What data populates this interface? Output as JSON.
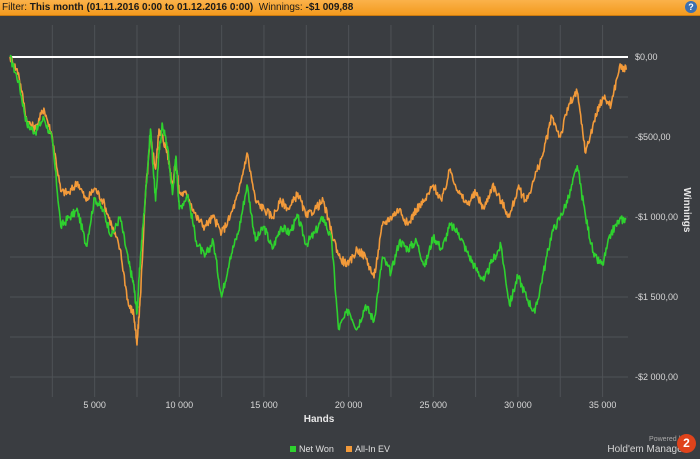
{
  "filter_bar": {
    "prefix": "Filter: ",
    "range": "This month (01.11.2016 0:00 to 01.12.2016 0:00)",
    "winnings_label": "Winnings:",
    "winnings_value": "-$1 009,88",
    "help_icon": "?"
  },
  "branding": {
    "powered_by": "Powered by",
    "product": "Hold'em Manager",
    "badge": "2"
  },
  "colors": {
    "net_won": "#2ed12e",
    "all_in_ev": "#f29a3a",
    "zero_line": "#ffffff",
    "grid": "#4e5256"
  },
  "chart_data": {
    "type": "line",
    "xlabel": "Hands",
    "ylabel": "Winnings",
    "xlim": [
      0,
      36500
    ],
    "ylim": [
      -2000,
      0
    ],
    "xticks": [
      5000,
      10000,
      15000,
      20000,
      25000,
      30000,
      35000
    ],
    "xtick_labels": [
      "5 000",
      "10 000",
      "15 000",
      "20 000",
      "25 000",
      "30 000",
      "35 000"
    ],
    "yticks": [
      0,
      -500,
      -1000,
      -1500,
      -2000
    ],
    "ytick_labels": [
      "$0,00",
      "-$500,00",
      "-$1 000,00",
      "-$1 500,00",
      "-$2 000,00"
    ],
    "legend": [
      "Net Won",
      "All-In EV"
    ],
    "legend_position": "bottom-center",
    "grid": true,
    "series": [
      {
        "name": "Net Won",
        "points": [
          [
            0,
            0
          ],
          [
            500,
            -150
          ],
          [
            1000,
            -420
          ],
          [
            1500,
            -470
          ],
          [
            2000,
            -380
          ],
          [
            2500,
            -520
          ],
          [
            3000,
            -1060
          ],
          [
            3500,
            -1000
          ],
          [
            4000,
            -960
          ],
          [
            4500,
            -1180
          ],
          [
            5000,
            -880
          ],
          [
            5500,
            -960
          ],
          [
            6000,
            -1120
          ],
          [
            6500,
            -1000
          ],
          [
            7000,
            -1280
          ],
          [
            7300,
            -1420
          ],
          [
            7500,
            -1600
          ],
          [
            7700,
            -1260
          ],
          [
            8000,
            -860
          ],
          [
            8300,
            -450
          ],
          [
            8600,
            -900
          ],
          [
            8800,
            -600
          ],
          [
            9000,
            -420
          ],
          [
            9300,
            -560
          ],
          [
            9600,
            -860
          ],
          [
            9800,
            -620
          ],
          [
            10000,
            -950
          ],
          [
            10500,
            -860
          ],
          [
            11000,
            -1150
          ],
          [
            11500,
            -1250
          ],
          [
            12000,
            -1150
          ],
          [
            12500,
            -1500
          ],
          [
            13000,
            -1250
          ],
          [
            13500,
            -1090
          ],
          [
            14000,
            -800
          ],
          [
            14500,
            -1150
          ],
          [
            15000,
            -1060
          ],
          [
            15500,
            -1200
          ],
          [
            16000,
            -1060
          ],
          [
            16500,
            -1100
          ],
          [
            17000,
            -1000
          ],
          [
            17500,
            -1170
          ],
          [
            18000,
            -1100
          ],
          [
            18500,
            -1000
          ],
          [
            19000,
            -1150
          ],
          [
            19400,
            -1700
          ],
          [
            20000,
            -1580
          ],
          [
            20500,
            -1700
          ],
          [
            21000,
            -1550
          ],
          [
            21500,
            -1650
          ],
          [
            22000,
            -1250
          ],
          [
            22500,
            -1350
          ],
          [
            23000,
            -1150
          ],
          [
            23500,
            -1200
          ],
          [
            24000,
            -1150
          ],
          [
            24500,
            -1310
          ],
          [
            25000,
            -1120
          ],
          [
            25500,
            -1200
          ],
          [
            26000,
            -1050
          ],
          [
            26500,
            -1100
          ],
          [
            27000,
            -1220
          ],
          [
            27500,
            -1320
          ],
          [
            28000,
            -1400
          ],
          [
            28500,
            -1270
          ],
          [
            29000,
            -1180
          ],
          [
            29500,
            -1550
          ],
          [
            30000,
            -1370
          ],
          [
            30500,
            -1500
          ],
          [
            31000,
            -1600
          ],
          [
            31500,
            -1350
          ],
          [
            32000,
            -1100
          ],
          [
            32500,
            -1000
          ],
          [
            33000,
            -880
          ],
          [
            33500,
            -680
          ],
          [
            34000,
            -1000
          ],
          [
            34500,
            -1250
          ],
          [
            35000,
            -1300
          ],
          [
            35500,
            -1100
          ],
          [
            36000,
            -1020
          ],
          [
            36400,
            -1010
          ]
        ]
      },
      {
        "name": "All-In EV",
        "points": [
          [
            0,
            0
          ],
          [
            500,
            -100
          ],
          [
            1000,
            -400
          ],
          [
            1500,
            -450
          ],
          [
            2000,
            -320
          ],
          [
            2500,
            -500
          ],
          [
            3000,
            -840
          ],
          [
            3500,
            -850
          ],
          [
            4000,
            -780
          ],
          [
            4500,
            -900
          ],
          [
            5000,
            -820
          ],
          [
            5500,
            -900
          ],
          [
            6000,
            -1050
          ],
          [
            6500,
            -1200
          ],
          [
            7000,
            -1550
          ],
          [
            7300,
            -1600
          ],
          [
            7500,
            -1800
          ],
          [
            7700,
            -1500
          ],
          [
            8000,
            -860
          ],
          [
            8300,
            -500
          ],
          [
            8600,
            -700
          ],
          [
            8800,
            -450
          ],
          [
            9000,
            -500
          ],
          [
            9300,
            -600
          ],
          [
            9600,
            -800
          ],
          [
            9800,
            -650
          ],
          [
            10000,
            -850
          ],
          [
            10500,
            -860
          ],
          [
            11000,
            -1000
          ],
          [
            11500,
            -1060
          ],
          [
            12000,
            -1000
          ],
          [
            12500,
            -1100
          ],
          [
            13000,
            -1000
          ],
          [
            13500,
            -850
          ],
          [
            14000,
            -600
          ],
          [
            14500,
            -900
          ],
          [
            15000,
            -950
          ],
          [
            15500,
            -1000
          ],
          [
            16000,
            -900
          ],
          [
            16500,
            -950
          ],
          [
            17000,
            -850
          ],
          [
            17500,
            -1000
          ],
          [
            18000,
            -950
          ],
          [
            18500,
            -900
          ],
          [
            19000,
            -1100
          ],
          [
            19500,
            -1260
          ],
          [
            20000,
            -1300
          ],
          [
            20500,
            -1200
          ],
          [
            21000,
            -1250
          ],
          [
            21500,
            -1380
          ],
          [
            22000,
            -1050
          ],
          [
            22500,
            -1000
          ],
          [
            23000,
            -950
          ],
          [
            23500,
            -1050
          ],
          [
            24000,
            -950
          ],
          [
            24500,
            -900
          ],
          [
            25000,
            -800
          ],
          [
            25500,
            -900
          ],
          [
            26000,
            -700
          ],
          [
            26500,
            -850
          ],
          [
            27000,
            -920
          ],
          [
            27500,
            -850
          ],
          [
            28000,
            -950
          ],
          [
            28500,
            -800
          ],
          [
            29000,
            -900
          ],
          [
            29500,
            -1000
          ],
          [
            30000,
            -820
          ],
          [
            30500,
            -900
          ],
          [
            31000,
            -750
          ],
          [
            31500,
            -600
          ],
          [
            32000,
            -370
          ],
          [
            32500,
            -500
          ],
          [
            33000,
            -300
          ],
          [
            33500,
            -220
          ],
          [
            34000,
            -600
          ],
          [
            34500,
            -400
          ],
          [
            35000,
            -250
          ],
          [
            35500,
            -300
          ],
          [
            36000,
            -60
          ],
          [
            36400,
            -80
          ]
        ]
      }
    ]
  }
}
